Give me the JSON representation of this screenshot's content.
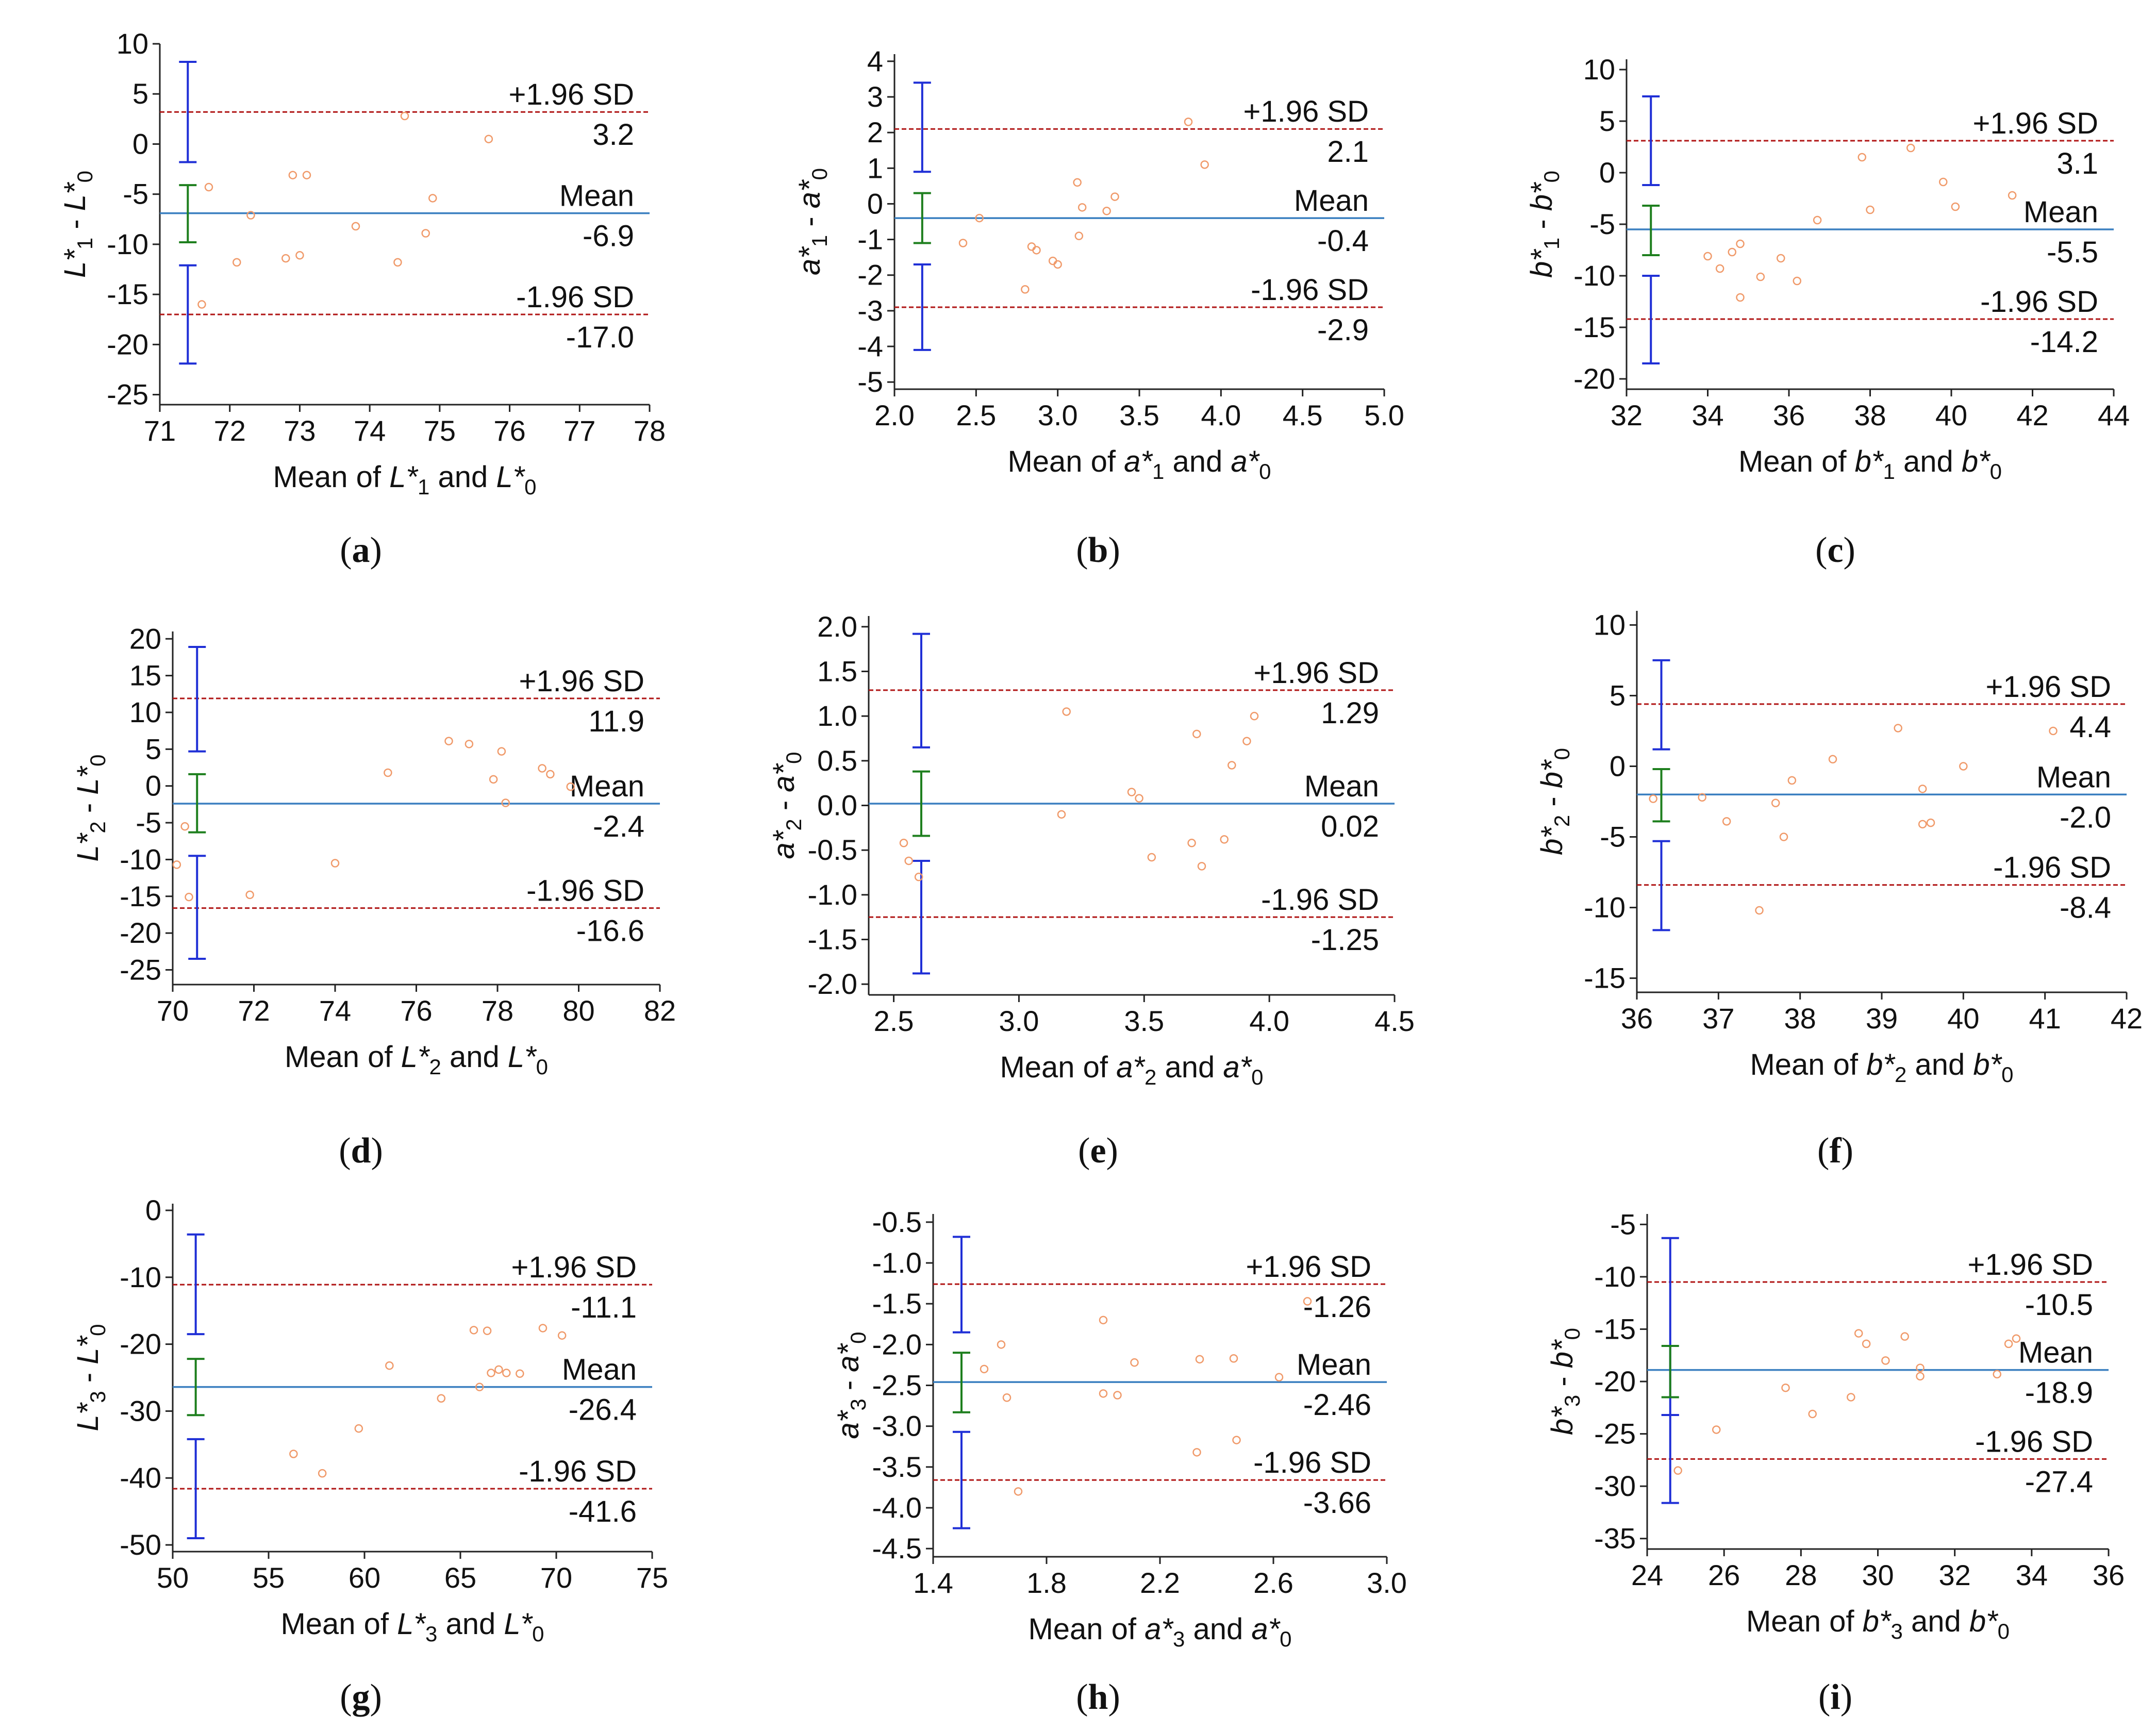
{
  "figure": {
    "colors": {
      "mean_line": "#3a7fc0",
      "limit_line": "#b01515",
      "ci_limits": "#1f2fd6",
      "ci_mean": "#1e7f1e",
      "points": "#f09a6a",
      "axis": "#222222"
    }
  },
  "chart_data": [
    {
      "panel": "a",
      "type": "scatter",
      "xlabel": {
        "main": "Mean of ",
        "v1": "L*",
        "s1": "1",
        "mid": " and ",
        "v2": "L*",
        "s2": "0"
      },
      "ylabel": {
        "v1": "L*",
        "s1": "1",
        "mid": " - ",
        "v2": "L*",
        "s2": "0"
      },
      "xlim": [
        71,
        78
      ],
      "ylim": [
        -26,
        10
      ],
      "xticks": [
        71,
        72,
        73,
        74,
        75,
        76,
        77,
        78
      ],
      "xtick_labels": [
        "71",
        "72",
        "73",
        "74",
        "75",
        "76",
        "77",
        "78"
      ],
      "yticks": [
        10,
        5,
        0,
        -5,
        -10,
        -15,
        -20,
        -25
      ],
      "ytick_labels": [
        "10",
        "5",
        "0",
        "-5",
        "-10",
        "-15",
        "-20",
        "-25"
      ],
      "upper": 3.2,
      "mean": -6.9,
      "lower": -17.0,
      "upper_text": "3.2",
      "mean_text": "-6.9",
      "lower_text": "-17.0",
      "upper_label": "+1.96 SD",
      "mean_label": "Mean",
      "lower_label": "-1.96 SD",
      "ci_x": 71.4,
      "ci_upper": [
        -1.8,
        8.2
      ],
      "ci_mean": [
        -9.8,
        -4.1
      ],
      "ci_lower": [
        -21.9,
        -12.1
      ],
      "x": [
        71.6,
        71.7,
        72.1,
        72.3,
        72.8,
        72.9,
        73.0,
        73.1,
        73.8,
        74.4,
        74.5,
        74.8,
        74.9,
        75.7
      ],
      "y": [
        -16.0,
        -4.3,
        -11.8,
        -7.1,
        -11.4,
        -3.1,
        -11.1,
        -3.1,
        -8.2,
        -11.8,
        2.8,
        -8.9,
        -5.4,
        0.5
      ]
    },
    {
      "panel": "b",
      "type": "scatter",
      "xlabel": {
        "main": "Mean of ",
        "v1": "a*",
        "s1": "1",
        "mid": " and ",
        "v2": "a*",
        "s2": "0"
      },
      "ylabel": {
        "v1": "a*",
        "s1": "1",
        "mid": " - ",
        "v2": "a*",
        "s2": "0"
      },
      "xlim": [
        2.0,
        5.0
      ],
      "ylim": [
        -5.2,
        4.2
      ],
      "xticks": [
        2.0,
        2.5,
        3.0,
        3.5,
        4.0,
        4.5,
        5.0
      ],
      "xtick_labels": [
        "2.0",
        "2.5",
        "3.0",
        "3.5",
        "4.0",
        "4.5",
        "5.0"
      ],
      "yticks": [
        4,
        3,
        2,
        1,
        0,
        -1,
        -2,
        -3,
        -4,
        -5
      ],
      "ytick_labels": [
        "4",
        "3",
        "2",
        "1",
        "0",
        "-1",
        "-2",
        "-3",
        "-4",
        "-5"
      ],
      "upper": 2.1,
      "mean": -0.4,
      "lower": -2.9,
      "upper_text": "2.1",
      "mean_text": "-0.4",
      "lower_text": "-2.9",
      "upper_label": "+1.96 SD",
      "mean_label": "Mean",
      "lower_label": "-1.96 SD",
      "ci_x": 2.17,
      "ci_upper": [
        0.9,
        3.4
      ],
      "ci_mean": [
        -1.1,
        0.3
      ],
      "ci_lower": [
        -4.1,
        -1.7
      ],
      "x": [
        2.42,
        2.52,
        2.8,
        2.84,
        2.87,
        2.97,
        3.0,
        3.12,
        3.13,
        3.15,
        3.3,
        3.35,
        3.8,
        3.9
      ],
      "y": [
        -1.1,
        -0.4,
        -2.4,
        -1.2,
        -1.3,
        -1.6,
        -1.7,
        0.6,
        -0.9,
        -0.1,
        -0.2,
        0.2,
        2.3,
        1.1
      ]
    },
    {
      "panel": "c",
      "type": "scatter",
      "xlabel": {
        "main": "Mean of ",
        "v1": "b*",
        "s1": "1",
        "mid": " and ",
        "v2": "b*",
        "s2": "0"
      },
      "ylabel": {
        "v1": "b*",
        "s1": "1",
        "mid": " - ",
        "v2": "b*",
        "s2": "0"
      },
      "xlim": [
        32,
        44
      ],
      "ylim": [
        -21,
        11
      ],
      "xticks": [
        32,
        34,
        36,
        38,
        40,
        42,
        44
      ],
      "xtick_labels": [
        "32",
        "34",
        "36",
        "38",
        "40",
        "42",
        "44"
      ],
      "yticks": [
        10,
        5,
        0,
        -5,
        -10,
        -15,
        -20
      ],
      "ytick_labels": [
        "10",
        "5",
        "0",
        "-5",
        "-10",
        "-15",
        "-20"
      ],
      "upper": 3.1,
      "mean": -5.5,
      "lower": -14.2,
      "upper_text": "3.1",
      "mean_text": "-5.5",
      "lower_text": "-14.2",
      "upper_label": "+1.96 SD",
      "mean_label": "Mean",
      "lower_label": "-1.96 SD",
      "ci_x": 32.6,
      "ci_upper": [
        -1.2,
        7.4
      ],
      "ci_mean": [
        -8.0,
        -3.2
      ],
      "ci_lower": [
        -18.5,
        -10.0
      ],
      "x": [
        34.0,
        34.3,
        34.6,
        34.8,
        34.8,
        35.3,
        35.8,
        36.2,
        36.7,
        37.8,
        38.0,
        39.0,
        39.8,
        40.1,
        41.5
      ],
      "y": [
        -8.1,
        -9.3,
        -7.7,
        -6.9,
        -12.1,
        -10.1,
        -8.3,
        -10.5,
        -4.6,
        1.5,
        -3.6,
        2.4,
        -0.9,
        -3.3,
        -2.2
      ]
    },
    {
      "panel": "d",
      "type": "scatter",
      "xlabel": {
        "main": "Mean of ",
        "v1": "L*",
        "s1": "2",
        "mid": " and ",
        "v2": "L*",
        "s2": "0"
      },
      "ylabel": {
        "v1": "L*",
        "s1": "2",
        "mid": " - ",
        "v2": "L*",
        "s2": "0"
      },
      "xlim": [
        70,
        82
      ],
      "ylim": [
        -27,
        21
      ],
      "xticks": [
        70,
        72,
        74,
        76,
        78,
        80,
        82
      ],
      "xtick_labels": [
        "70",
        "72",
        "74",
        "76",
        "78",
        "80",
        "82"
      ],
      "yticks": [
        20,
        15,
        10,
        5,
        0,
        -5,
        -10,
        -15,
        -20,
        -25
      ],
      "ytick_labels": [
        "20",
        "15",
        "10",
        "5",
        "0",
        "-5",
        "-10",
        "-15",
        "-20",
        "-25"
      ],
      "upper": 11.9,
      "mean": -2.4,
      "lower": -16.6,
      "upper_text": "11.9",
      "mean_text": "-2.4",
      "lower_text": "-16.6",
      "upper_label": "+1.96 SD",
      "mean_label": "Mean",
      "lower_label": "-1.96 SD",
      "ci_x": 70.6,
      "ci_upper": [
        4.7,
        18.9
      ],
      "ci_mean": [
        -6.3,
        1.6
      ],
      "ci_lower": [
        -23.5,
        -9.5
      ],
      "x": [
        70.1,
        70.3,
        70.4,
        71.9,
        74.0,
        75.3,
        76.8,
        77.3,
        77.9,
        78.1,
        78.2,
        79.1,
        79.3,
        79.8
      ],
      "y": [
        -10.7,
        -5.5,
        -15.1,
        -14.8,
        -10.5,
        1.8,
        6.1,
        5.7,
        0.9,
        4.7,
        -2.3,
        2.4,
        1.6,
        -0.1
      ]
    },
    {
      "panel": "e",
      "type": "scatter",
      "xlabel": {
        "main": "Mean of ",
        "v1": "a*",
        "s1": "2",
        "mid": " and ",
        "v2": "a*",
        "s2": "0"
      },
      "ylabel": {
        "v1": "a*",
        "s1": "2",
        "mid": " - ",
        "v2": "a*",
        "s2": "0"
      },
      "xlim": [
        2.4,
        4.5
      ],
      "ylim": [
        -2.12,
        2.12
      ],
      "xticks": [
        2.5,
        3.0,
        3.5,
        4.0,
        4.5
      ],
      "xtick_labels": [
        "2.5",
        "3.0",
        "3.5",
        "4.0",
        "4.5"
      ],
      "yticks": [
        2.0,
        1.5,
        1.0,
        0.5,
        0.0,
        -0.5,
        -1.0,
        -1.5,
        -2.0
      ],
      "ytick_labels": [
        "2.0",
        "1.5",
        "1.0",
        "0.5",
        "0.0",
        "-0.5",
        "-1.0",
        "-1.5",
        "-2.0"
      ],
      "upper": 1.29,
      "mean": 0.02,
      "lower": -1.25,
      "upper_text": "1.29",
      "mean_text": "0.02",
      "lower_text": "-1.25",
      "upper_label": "+1.96 SD",
      "mean_label": "Mean",
      "lower_label": "-1.96 SD",
      "ci_x": 2.61,
      "ci_upper": [
        0.65,
        1.92
      ],
      "ci_mean": [
        -0.34,
        0.38
      ],
      "ci_lower": [
        -1.88,
        -0.62
      ],
      "x": [
        2.54,
        2.56,
        2.6,
        3.17,
        3.19,
        3.45,
        3.48,
        3.53,
        3.69,
        3.71,
        3.73,
        3.82,
        3.85,
        3.91,
        3.94
      ],
      "y": [
        -0.42,
        -0.62,
        -0.8,
        -0.1,
        1.05,
        0.15,
        0.08,
        -0.58,
        -0.42,
        0.8,
        -0.68,
        -0.38,
        0.45,
        0.72,
        1.0
      ]
    },
    {
      "panel": "f",
      "type": "scatter",
      "xlabel": {
        "main": "Mean of ",
        "v1": "b*",
        "s1": "2",
        "mid": " and ",
        "v2": "b*",
        "s2": "0"
      },
      "ylabel": {
        "v1": "b*",
        "s1": "2",
        "mid": " - ",
        "v2": "b*",
        "s2": "0"
      },
      "xlim": [
        36,
        42
      ],
      "ylim": [
        -16,
        11
      ],
      "xticks": [
        36,
        37,
        38,
        39,
        40,
        41,
        42
      ],
      "xtick_labels": [
        "36",
        "37",
        "38",
        "39",
        "40",
        "41",
        "42"
      ],
      "yticks": [
        10,
        5,
        0,
        -5,
        -10,
        -15
      ],
      "ytick_labels": [
        "10",
        "5",
        "0",
        "-5",
        "-10",
        "-15"
      ],
      "upper": 4.4,
      "mean": -2.0,
      "lower": -8.4,
      "upper_text": "4.4",
      "mean_text": "-2.0",
      "lower_text": "-8.4",
      "upper_label": "+1.96 SD",
      "mean_label": "Mean",
      "lower_label": "-1.96 SD",
      "ci_x": 36.3,
      "ci_upper": [
        1.2,
        7.5
      ],
      "ci_mean": [
        -3.9,
        -0.2
      ],
      "ci_lower": [
        -11.6,
        -5.3
      ],
      "x": [
        36.2,
        36.8,
        37.1,
        37.7,
        37.8,
        37.9,
        37.5,
        38.4,
        39.2,
        39.5,
        39.5,
        39.6,
        40.0,
        41.1
      ],
      "y": [
        -2.3,
        -2.2,
        -3.9,
        -2.6,
        -5.0,
        -1.0,
        -10.2,
        0.5,
        2.7,
        -1.6,
        -4.1,
        -4.0,
        0.0,
        2.5
      ]
    },
    {
      "panel": "g",
      "type": "scatter",
      "xlabel": {
        "main": "Mean of ",
        "v1": "L*",
        "s1": "3",
        "mid": " and ",
        "v2": "L*",
        "s2": "0"
      },
      "ylabel": {
        "v1": "L*",
        "s1": "3",
        "mid": " - ",
        "v2": "L*",
        "s2": "0"
      },
      "xlim": [
        50,
        75
      ],
      "ylim": [
        -51,
        1
      ],
      "xticks": [
        50,
        55,
        60,
        65,
        70,
        75
      ],
      "xtick_labels": [
        "50",
        "55",
        "60",
        "65",
        "70",
        "75"
      ],
      "yticks": [
        0,
        -10,
        -20,
        -30,
        -40,
        -50
      ],
      "ytick_labels": [
        "0",
        "-10",
        "-20",
        "-30",
        "-40",
        "-50"
      ],
      "upper": -11.1,
      "mean": -26.4,
      "lower": -41.6,
      "upper_text": "-11.1",
      "mean_text": "-26.4",
      "lower_text": "-41.6",
      "upper_label": "+1.96 SD",
      "mean_label": "Mean",
      "lower_label": "-1.96 SD",
      "ci_x": 51.2,
      "ci_upper": [
        -18.5,
        -3.6
      ],
      "ci_mean": [
        -30.6,
        -22.2
      ],
      "ci_lower": [
        -49.0,
        -34.2
      ],
      "x": [
        56.3,
        57.8,
        59.7,
        61.3,
        64.0,
        65.7,
        66.0,
        66.4,
        66.6,
        67.0,
        67.4,
        68.1,
        69.3,
        70.3
      ],
      "y": [
        -36.4,
        -39.3,
        -32.6,
        -23.2,
        -28.1,
        -17.9,
        -26.4,
        -18.0,
        -24.3,
        -23.8,
        -24.3,
        -24.4,
        -17.6,
        -18.7
      ]
    },
    {
      "panel": "h",
      "type": "scatter",
      "xlabel": {
        "main": "Mean of ",
        "v1": "a*",
        "s1": "3",
        "mid": " and ",
        "v2": "a*",
        "s2": "0"
      },
      "ylabel": {
        "v1": "a*",
        "s1": "3",
        "mid": " - ",
        "v2": "a*",
        "s2": "0"
      },
      "xlim": [
        1.4,
        3.0
      ],
      "ylim": [
        -4.6,
        -0.4
      ],
      "xticks": [
        1.4,
        1.8,
        2.2,
        2.6,
        3.0
      ],
      "xtick_labels": [
        "1.4",
        "1.8",
        "2.2",
        "2.6",
        "3.0"
      ],
      "yticks": [
        -0.5,
        -1.0,
        -1.5,
        -2.0,
        -2.5,
        -3.0,
        -3.5,
        -4.0,
        -4.5
      ],
      "ytick_labels": [
        "-0.5",
        "-1.0",
        "-1.5",
        "-2.0",
        "-2.5",
        "-3.0",
        "-3.5",
        "-4.0",
        "-4.5"
      ],
      "upper": -1.26,
      "mean": -2.46,
      "lower": -3.66,
      "upper_text": "-1.26",
      "mean_text": "-2.46",
      "lower_text": "-3.66",
      "upper_label": "+1.96 SD",
      "mean_label": "Mean",
      "lower_label": "-1.96 SD",
      "ci_x": 1.5,
      "ci_upper": [
        -1.85,
        -0.68
      ],
      "ci_mean": [
        -2.83,
        -2.1
      ],
      "ci_lower": [
        -4.25,
        -3.07
      ],
      "x": [
        1.58,
        1.64,
        1.66,
        1.7,
        2.0,
        2.0,
        2.05,
        2.11,
        2.33,
        2.34,
        2.46,
        2.47,
        2.62,
        2.72
      ],
      "y": [
        -2.3,
        -2.0,
        -2.65,
        -3.8,
        -1.7,
        -2.6,
        -2.62,
        -2.22,
        -3.32,
        -2.18,
        -2.17,
        -3.17,
        -2.4,
        -1.47
      ]
    },
    {
      "panel": "i",
      "type": "scatter",
      "xlabel": {
        "main": "Mean of ",
        "v1": "b*",
        "s1": "3",
        "mid": " and ",
        "v2": "b*",
        "s2": "0"
      },
      "ylabel": {
        "v1": "b*",
        "s1": "3",
        "mid": " - ",
        "v2": "b*",
        "s2": "0"
      },
      "xlim": [
        24,
        36
      ],
      "ylim": [
        -36,
        -4
      ],
      "xticks": [
        24,
        26,
        28,
        30,
        32,
        34,
        36
      ],
      "xtick_labels": [
        "24",
        "26",
        "28",
        "30",
        "32",
        "34",
        "36"
      ],
      "yticks": [
        -5,
        -10,
        -15,
        -20,
        -25,
        -30,
        -35
      ],
      "ytick_labels": [
        "-5",
        "-10",
        "-15",
        "-20",
        "-25",
        "-30",
        "-35"
      ],
      "upper": -10.5,
      "mean": -18.9,
      "lower": -27.4,
      "upper_text": "-10.5",
      "mean_text": "-18.9",
      "lower_text": "-27.4",
      "upper_label": "+1.96 SD",
      "mean_label": "Mean",
      "lower_label": "-1.96 SD",
      "ci_x": 24.6,
      "ci_upper": [
        -23.2,
        -6.3
      ],
      "ci_mean": [
        -21.5,
        -16.6
      ],
      "ci_lower": [
        -31.6,
        -23.2
      ],
      "x": [
        24.8,
        25.8,
        27.6,
        28.3,
        29.3,
        29.5,
        29.7,
        30.2,
        30.7,
        31.1,
        31.1,
        33.1,
        33.4,
        33.6
      ],
      "y": [
        -28.5,
        -24.6,
        -20.6,
        -23.1,
        -21.5,
        -15.4,
        -16.4,
        -18.0,
        -15.7,
        -18.7,
        -19.5,
        -19.3,
        -16.4,
        -15.9
      ]
    }
  ]
}
